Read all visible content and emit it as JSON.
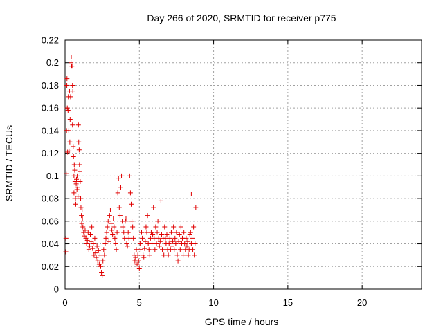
{
  "chart_data": {
    "type": "scatter",
    "title": "Day 266 of 2020, SRMTID for receiver p775",
    "xlabel": "GPS time / hours",
    "ylabel": "SRMTID / TECUs",
    "xlim": [
      0,
      24
    ],
    "ylim": [
      0,
      0.22
    ],
    "xticks": [
      0,
      5,
      10,
      15,
      20
    ],
    "xtick_labels": [
      "0",
      "5",
      "10",
      "15",
      "20"
    ],
    "yticks": [
      0,
      0.02,
      0.04,
      0.06,
      0.08,
      0.1,
      0.12,
      0.14,
      0.16,
      0.18,
      0.2,
      0.22
    ],
    "ytick_labels": [
      "0",
      "0.02",
      "0.04",
      "0.06",
      "0.08",
      "0.1",
      "0.12",
      "0.14",
      "0.16",
      "0.18",
      "0.2",
      "0.22"
    ],
    "grid": true,
    "marker": "+",
    "series": [
      {
        "name": "SRMTID",
        "color": "#e00000",
        "points": [
          [
            0.05,
            0.033
          ],
          [
            0.06,
            0.045
          ],
          [
            0.08,
            0.102
          ],
          [
            0.1,
            0.14
          ],
          [
            0.12,
            0.18
          ],
          [
            0.13,
            0.186
          ],
          [
            0.15,
            0.16
          ],
          [
            0.17,
            0.121
          ],
          [
            0.2,
            0.158
          ],
          [
            0.22,
            0.17
          ],
          [
            0.25,
            0.14
          ],
          [
            0.27,
            0.122
          ],
          [
            0.3,
            0.175
          ],
          [
            0.32,
            0.13
          ],
          [
            0.34,
            0.15
          ],
          [
            0.37,
            0.17
          ],
          [
            0.4,
            0.2
          ],
          [
            0.42,
            0.205
          ],
          [
            0.44,
            0.197
          ],
          [
            0.47,
            0.197
          ],
          [
            0.5,
            0.18
          ],
          [
            0.5,
            0.145
          ],
          [
            0.52,
            0.175
          ],
          [
            0.55,
            0.126
          ],
          [
            0.57,
            0.117
          ],
          [
            0.6,
            0.1
          ],
          [
            0.6,
            0.085
          ],
          [
            0.62,
            0.11
          ],
          [
            0.65,
            0.105
          ],
          [
            0.67,
            0.095
          ],
          [
            0.7,
            0.08
          ],
          [
            0.72,
            0.075
          ],
          [
            0.75,
            0.093
          ],
          [
            0.77,
            0.097
          ],
          [
            0.8,
            0.088
          ],
          [
            0.82,
            0.1
          ],
          [
            0.85,
            0.09
          ],
          [
            0.87,
            0.082
          ],
          [
            0.9,
            0.145
          ],
          [
            0.92,
            0.13
          ],
          [
            0.95,
            0.123
          ],
          [
            0.97,
            0.11
          ],
          [
            1.0,
            0.104
          ],
          [
            1.02,
            0.095
          ],
          [
            1.05,
            0.08
          ],
          [
            1.07,
            0.072
          ],
          [
            1.1,
            0.065
          ],
          [
            1.12,
            0.058
          ],
          [
            1.15,
            0.07
          ],
          [
            1.17,
            0.062
          ],
          [
            1.2,
            0.055
          ],
          [
            1.25,
            0.05
          ],
          [
            1.3,
            0.047
          ],
          [
            1.35,
            0.052
          ],
          [
            1.4,
            0.045
          ],
          [
            1.45,
            0.04
          ],
          [
            1.5,
            0.043
          ],
          [
            1.55,
            0.05
          ],
          [
            1.6,
            0.035
          ],
          [
            1.65,
            0.038
          ],
          [
            1.7,
            0.048
          ],
          [
            1.75,
            0.042
          ],
          [
            1.8,
            0.055
          ],
          [
            1.85,
            0.036
          ],
          [
            1.9,
            0.04
          ],
          [
            1.95,
            0.03
          ],
          [
            2.0,
            0.045
          ],
          [
            2.05,
            0.032
          ],
          [
            2.1,
            0.028
          ],
          [
            2.15,
            0.038
          ],
          [
            2.2,
            0.025
          ],
          [
            2.25,
            0.034
          ],
          [
            2.3,
            0.022
          ],
          [
            2.35,
            0.03
          ],
          [
            2.4,
            0.02
          ],
          [
            2.45,
            0.015
          ],
          [
            2.5,
            0.012
          ],
          [
            2.55,
            0.025
          ],
          [
            2.6,
            0.035
          ],
          [
            2.65,
            0.03
          ],
          [
            2.7,
            0.04
          ],
          [
            2.75,
            0.045
          ],
          [
            2.8,
            0.05
          ],
          [
            2.85,
            0.055
          ],
          [
            2.9,
            0.06
          ],
          [
            2.95,
            0.042
          ],
          [
            3.0,
            0.065
          ],
          [
            3.05,
            0.07
          ],
          [
            3.1,
            0.058
          ],
          [
            3.15,
            0.052
          ],
          [
            3.2,
            0.048
          ],
          [
            3.25,
            0.062
          ],
          [
            3.3,
            0.055
          ],
          [
            3.35,
            0.045
          ],
          [
            3.4,
            0.04
          ],
          [
            3.45,
            0.035
          ],
          [
            3.5,
            0.05
          ],
          [
            3.55,
            0.085
          ],
          [
            3.6,
            0.098
          ],
          [
            3.65,
            0.072
          ],
          [
            3.7,
            0.065
          ],
          [
            3.75,
            0.09
          ],
          [
            3.8,
            0.1
          ],
          [
            3.85,
            0.06
          ],
          [
            3.9,
            0.055
          ],
          [
            3.95,
            0.05
          ],
          [
            4.0,
            0.045
          ],
          [
            4.05,
            0.06
          ],
          [
            4.1,
            0.062
          ],
          [
            4.15,
            0.04
          ],
          [
            4.2,
            0.038
          ],
          [
            4.25,
            0.05
          ],
          [
            4.3,
            0.045
          ],
          [
            4.35,
            0.1
          ],
          [
            4.4,
            0.085
          ],
          [
            4.45,
            0.075
          ],
          [
            4.5,
            0.06
          ],
          [
            4.55,
            0.055
          ],
          [
            4.6,
            0.045
          ],
          [
            4.65,
            0.03
          ],
          [
            4.7,
            0.025
          ],
          [
            4.75,
            0.028
          ],
          [
            4.8,
            0.035
          ],
          [
            4.85,
            0.022
          ],
          [
            4.9,
            0.03
          ],
          [
            4.95,
            0.025
          ],
          [
            5.0,
            0.018
          ],
          [
            5.05,
            0.04
          ],
          [
            5.1,
            0.035
          ],
          [
            5.15,
            0.05
          ],
          [
            5.2,
            0.045
          ],
          [
            5.25,
            0.03
          ],
          [
            5.3,
            0.028
          ],
          [
            5.35,
            0.036
          ],
          [
            5.4,
            0.042
          ],
          [
            5.45,
            0.055
          ],
          [
            5.5,
            0.05
          ],
          [
            5.55,
            0.065
          ],
          [
            5.6,
            0.04
          ],
          [
            5.65,
            0.035
          ],
          [
            5.7,
            0.03
          ],
          [
            5.75,
            0.045
          ],
          [
            5.8,
            0.05
          ],
          [
            5.85,
            0.04
          ],
          [
            5.9,
            0.048
          ],
          [
            5.95,
            0.072
          ],
          [
            6.0,
            0.045
          ],
          [
            6.05,
            0.035
          ],
          [
            6.1,
            0.055
          ],
          [
            6.15,
            0.04
          ],
          [
            6.2,
            0.05
          ],
          [
            6.25,
            0.06
          ],
          [
            6.3,
            0.045
          ],
          [
            6.35,
            0.038
          ],
          [
            6.4,
            0.042
          ],
          [
            6.45,
            0.078
          ],
          [
            6.5,
            0.048
          ],
          [
            6.55,
            0.035
          ],
          [
            6.6,
            0.045
          ],
          [
            6.65,
            0.03
          ],
          [
            6.7,
            0.055
          ],
          [
            6.75,
            0.045
          ],
          [
            6.8,
            0.04
          ],
          [
            6.85,
            0.048
          ],
          [
            6.9,
            0.035
          ],
          [
            6.95,
            0.03
          ],
          [
            7.0,
            0.04
          ],
          [
            7.05,
            0.045
          ],
          [
            7.1,
            0.035
          ],
          [
            7.15,
            0.05
          ],
          [
            7.2,
            0.038
          ],
          [
            7.25,
            0.042
          ],
          [
            7.3,
            0.055
          ],
          [
            7.35,
            0.035
          ],
          [
            7.4,
            0.045
          ],
          [
            7.45,
            0.04
          ],
          [
            7.5,
            0.05
          ],
          [
            7.55,
            0.03
          ],
          [
            7.6,
            0.025
          ],
          [
            7.65,
            0.042
          ],
          [
            7.7,
            0.048
          ],
          [
            7.75,
            0.035
          ],
          [
            7.8,
            0.055
          ],
          [
            7.85,
            0.04
          ],
          [
            7.9,
            0.045
          ],
          [
            7.95,
            0.03
          ],
          [
            8.0,
            0.05
          ],
          [
            8.05,
            0.04
          ],
          [
            8.1,
            0.035
          ],
          [
            8.15,
            0.045
          ],
          [
            8.2,
            0.038
          ],
          [
            8.25,
            0.042
          ],
          [
            8.3,
            0.03
          ],
          [
            8.35,
            0.035
          ],
          [
            8.4,
            0.048
          ],
          [
            8.45,
            0.05
          ],
          [
            8.5,
            0.04
          ],
          [
            8.55,
            0.045
          ],
          [
            8.6,
            0.035
          ],
          [
            8.65,
            0.055
          ],
          [
            8.7,
            0.03
          ],
          [
            8.75,
            0.04
          ],
          [
            8.8,
            0.072
          ],
          [
            8.5,
            0.084
          ]
        ]
      }
    ]
  }
}
